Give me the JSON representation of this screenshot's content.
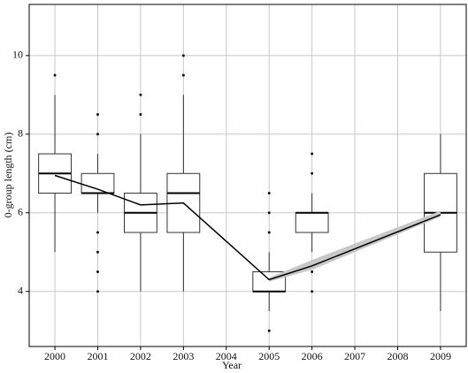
{
  "chart_data": {
    "type": "box",
    "x_label": "Year",
    "y_label": "0-group length (cm)",
    "xlim": [
      1999.4,
      2009.6
    ],
    "xticks": [
      2000,
      2001,
      2002,
      2003,
      2004,
      2005,
      2006,
      2007,
      2008,
      2009
    ],
    "ylim": [
      2.6,
      11.3
    ],
    "yticks": [
      4,
      6,
      8,
      10
    ],
    "grid": true,
    "boxes": [
      {
        "x": 2000,
        "low": 5,
        "q1": 6.5,
        "median": 7,
        "q3": 7.5,
        "high": 9,
        "outliers": [
          9.5
        ]
      },
      {
        "x": 2001,
        "low": 6,
        "q1": 6.5,
        "median": 6.5,
        "q3": 7,
        "high": 7.5,
        "outliers": [
          8,
          8.5,
          5.5,
          5,
          4.5,
          4
        ]
      },
      {
        "x": 2002,
        "low": 4,
        "q1": 5.5,
        "median": 6,
        "q3": 6.5,
        "high": 8,
        "outliers": [
          8.5,
          9
        ]
      },
      {
        "x": 2003,
        "low": 4,
        "q1": 5.5,
        "median": 6.5,
        "q3": 7,
        "high": 9,
        "outliers": [
          9.5,
          10
        ]
      },
      {
        "x": 2005,
        "low": 3.5,
        "q1": 4,
        "median": 4,
        "q3": 4.5,
        "high": 5,
        "outliers": [
          5.5,
          6,
          6.5,
          3
        ]
      },
      {
        "x": 2006,
        "low": 5,
        "q1": 5.5,
        "median": 6,
        "q3": 6,
        "high": 6.5,
        "outliers": [
          7,
          7.5,
          4.5,
          4
        ]
      },
      {
        "x": 2009,
        "low": 3.5,
        "q1": 5,
        "median": 6,
        "q3": 7,
        "high": 8,
        "outliers": []
      }
    ],
    "trend": {
      "x": [
        2000,
        2001,
        2002,
        2003,
        2005,
        2006,
        2009
      ],
      "values": [
        6.95,
        6.6,
        6.2,
        6.25,
        4.3,
        4.65,
        5.95
      ],
      "color": "#000000"
    },
    "band": {
      "x": [
        2005,
        2006,
        2009
      ],
      "lower": [
        4.25,
        4.55,
        5.9
      ],
      "upper": [
        4.35,
        4.8,
        6.05
      ],
      "color": "#c8c8c8"
    }
  }
}
